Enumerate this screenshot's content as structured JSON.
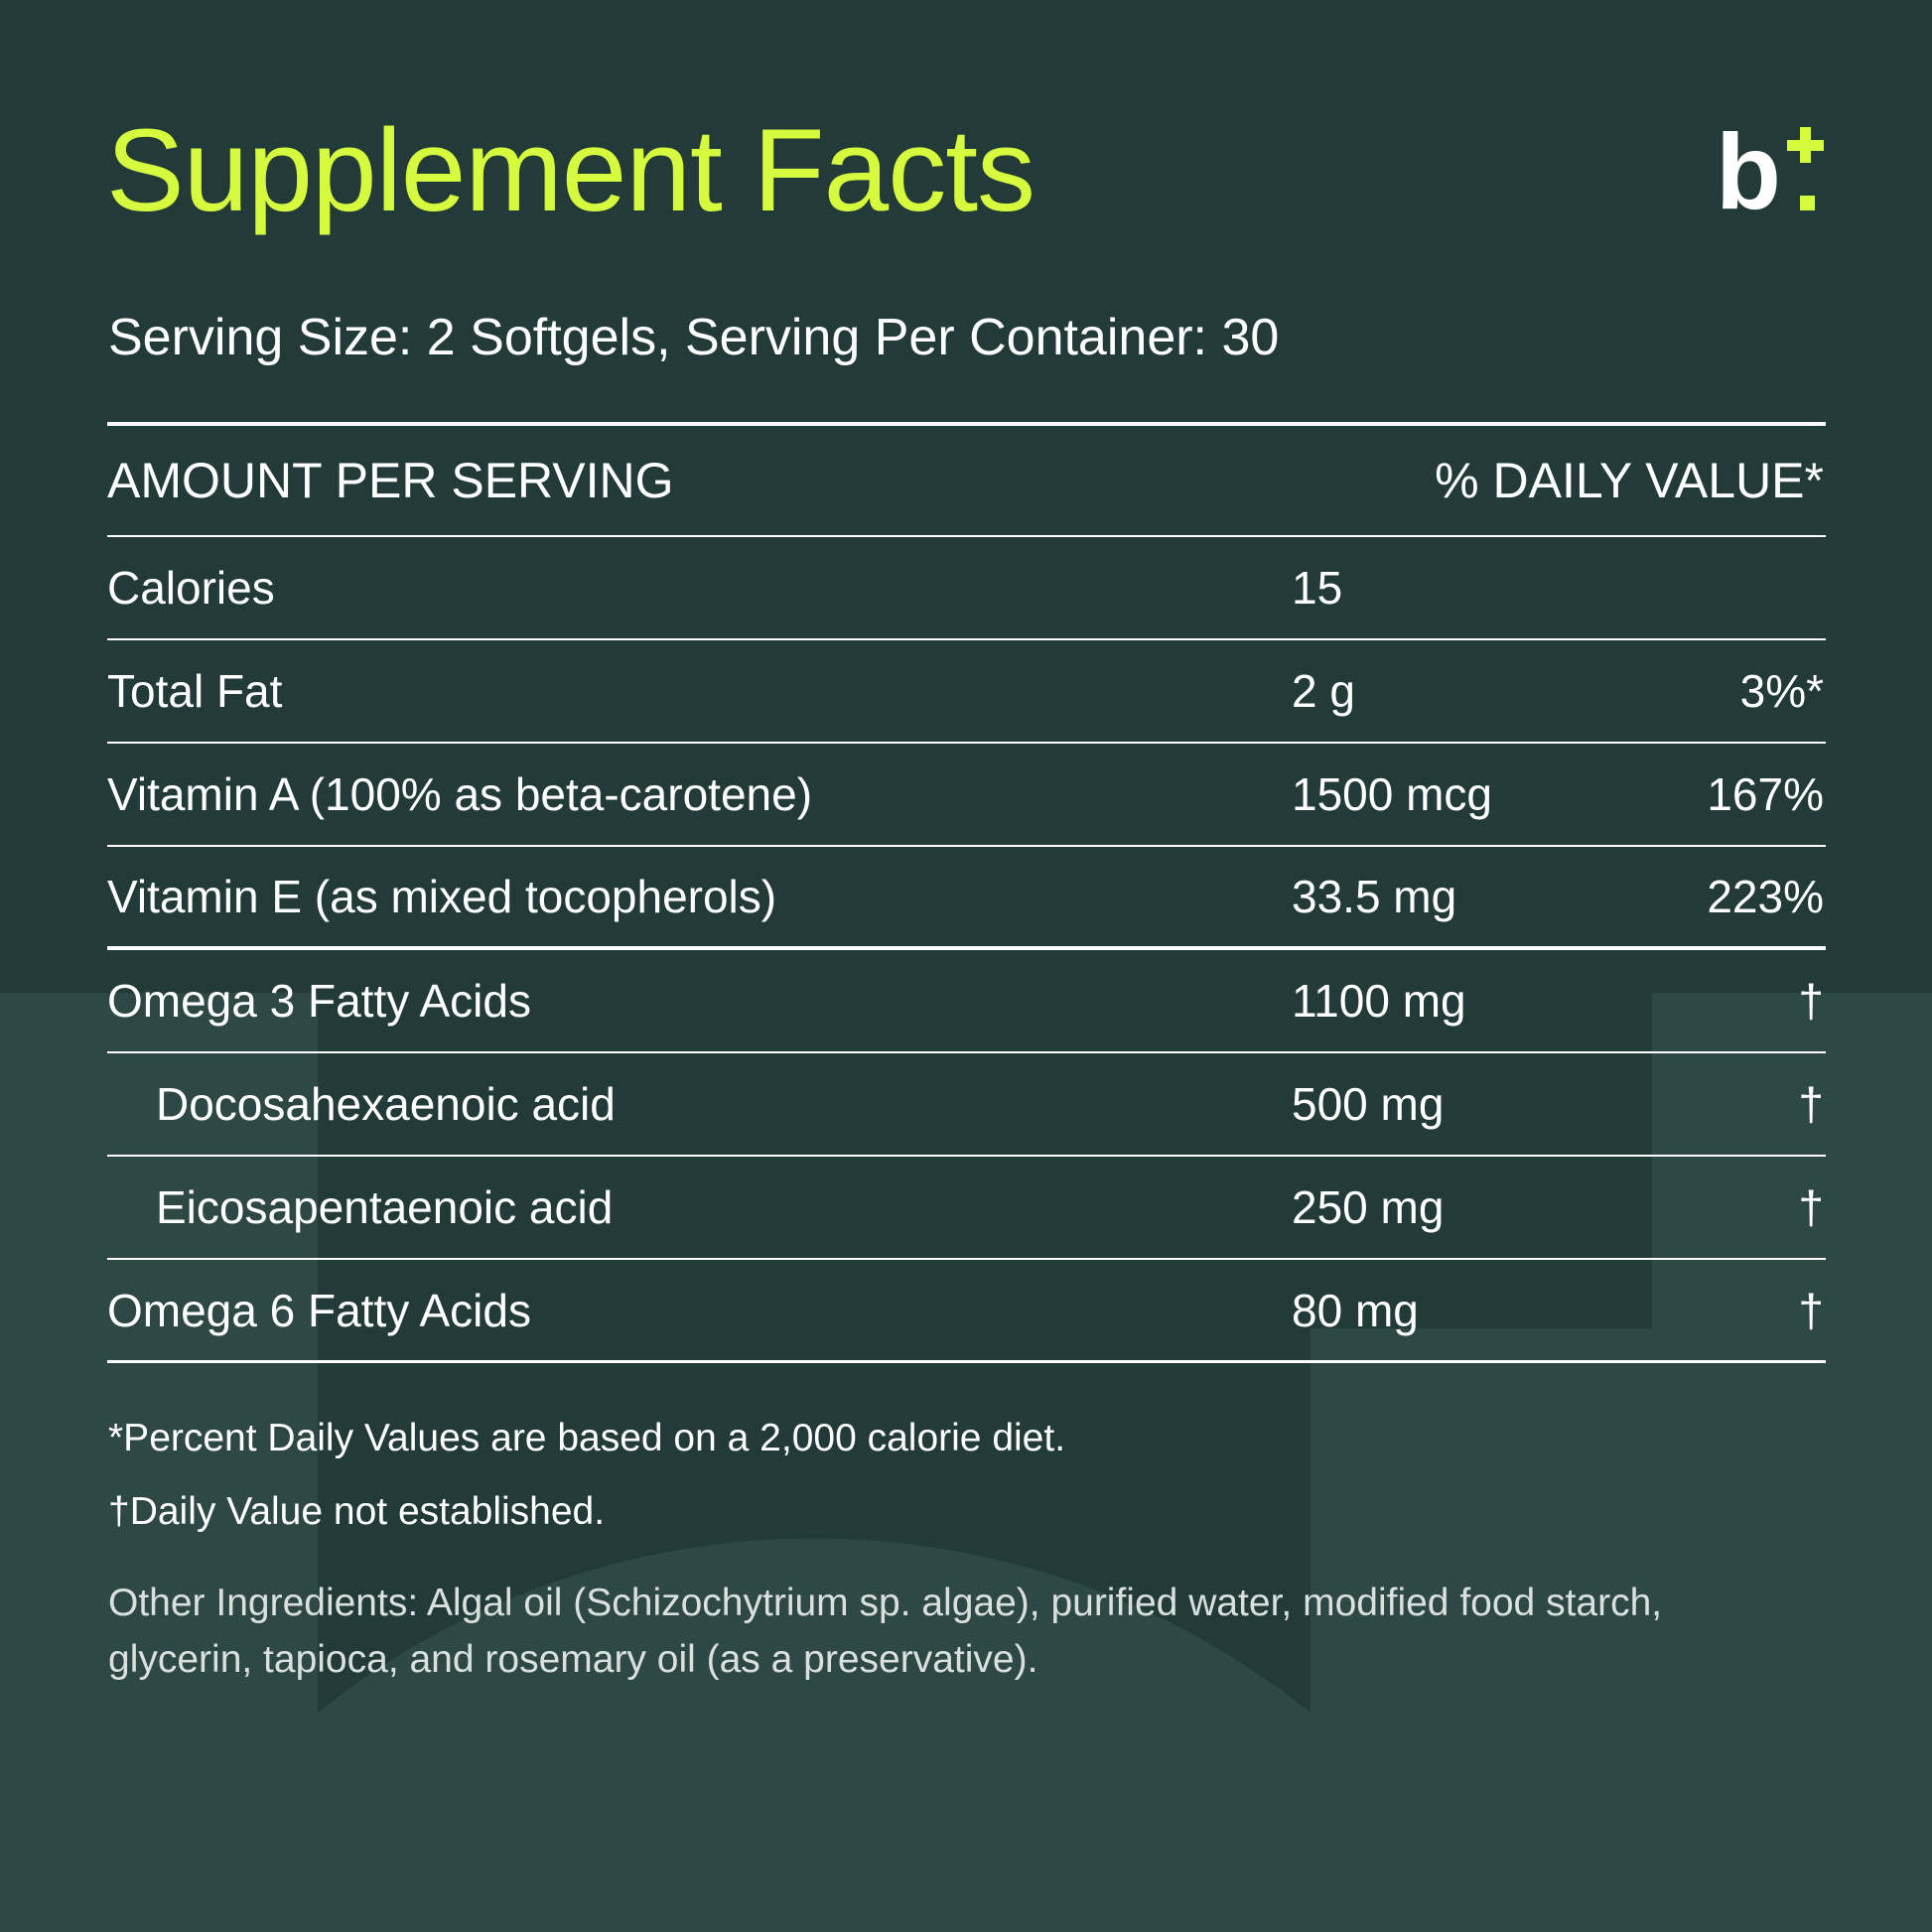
{
  "colors": {
    "background": "#223b38",
    "background_art": "#2e4845",
    "accent": "#d6fb3e",
    "text": "#ffffff",
    "muted_text": "#d9e0de",
    "rule": "#ffffff"
  },
  "title": "Supplement Facts",
  "logo": {
    "icon": "b-plus-logo-icon",
    "letter": "b"
  },
  "serving": "Serving Size: 2 Softgels, Serving Per Container: 30",
  "table": {
    "header": {
      "left": "AMOUNT PER SERVING",
      "right": "% DAILY VALUE*"
    },
    "rows": [
      {
        "name": "Calories",
        "amount": "15",
        "dv": ""
      },
      {
        "name": "Total Fat",
        "amount": "2 g",
        "dv": "3%*"
      },
      {
        "name": "Vitamin A (100% as beta-carotene)",
        "amount": "1500 mcg",
        "dv": "167%"
      },
      {
        "name": "Vitamin E (as mixed tocopherols)",
        "amount": "33.5 mg",
        "dv": "223%"
      },
      {
        "name": "Omega 3 Fatty Acids",
        "amount": "1100 mg",
        "dv": "†"
      },
      {
        "name": "Docosahexaenoic acid",
        "amount": "500 mg",
        "dv": "†"
      },
      {
        "name": "Eicosapentaenoic acid",
        "amount": "250 mg",
        "dv": "†"
      },
      {
        "name": "Omega 6 Fatty Acids",
        "amount": "80 mg",
        "dv": "†"
      }
    ]
  },
  "footnotes": {
    "percent": "*Percent Daily Values are based on a 2,000 calorie diet.",
    "dagger": "†Daily Value not established."
  },
  "other_ingredients": "Other Ingredients: Algal oil (Schizochytrium sp. algae), purified water, modified food starch, glycerin, tapioca, and rosemary oil (as a preservative)."
}
